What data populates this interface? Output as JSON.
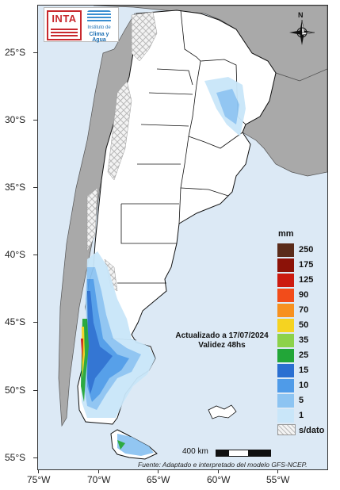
{
  "logos": {
    "inta_text": "INTA",
    "clima_line1": "Instituto de",
    "clima_line2": "Clima y Agua"
  },
  "north_arrow": "N",
  "annotation": {
    "line1": "Actualizado a 17/07/2024",
    "line2": "Validez 48hs"
  },
  "legend": {
    "unit": "mm",
    "items": [
      {
        "label": "250",
        "color": "#5a2b1a"
      },
      {
        "label": "175",
        "color": "#8c1208"
      },
      {
        "label": "125",
        "color": "#cc1a10"
      },
      {
        "label": "90",
        "color": "#f24c1a"
      },
      {
        "label": "70",
        "color": "#f7911f"
      },
      {
        "label": "50",
        "color": "#f5d321"
      },
      {
        "label": "35",
        "color": "#8cd24a"
      },
      {
        "label": "25",
        "color": "#22a638"
      },
      {
        "label": "15",
        "color": "#2a6fd1"
      },
      {
        "label": "10",
        "color": "#4f9be8"
      },
      {
        "label": "5",
        "color": "#8dc4f2"
      },
      {
        "label": "1",
        "color": "#c9e6f9"
      },
      {
        "label": "s/dato",
        "color": "hatch"
      }
    ]
  },
  "latitudes": [
    "25°S",
    "30°S",
    "35°S",
    "40°S",
    "45°S",
    "50°S",
    "55°S"
  ],
  "longitudes": [
    "75°W",
    "70°W",
    "65°W",
    "60°W",
    "55°W"
  ],
  "scale": "400 km",
  "source": "Fuente: Adaptado e interpretado del modelo GFS-NCEP."
}
